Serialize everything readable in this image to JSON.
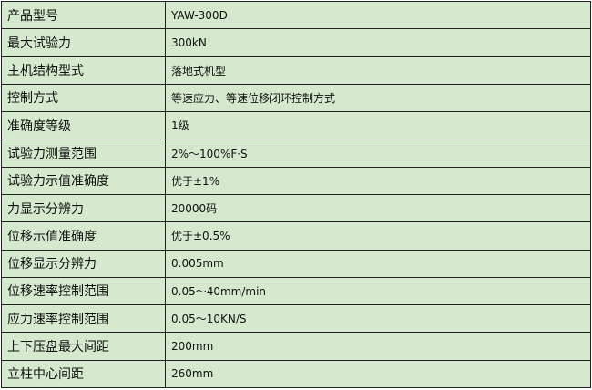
{
  "rows": [
    {
      "label": "产品型号",
      "value": "YAW-300D"
    },
    {
      "label": "最大试验力",
      "value": "300kN"
    },
    {
      "label": "主机结构型式",
      "value": "落地式机型"
    },
    {
      "label": "控制方式",
      "value": "等速应力、等速位移闭环控制方式"
    },
    {
      "label": "准确度等级",
      "value": "1级"
    },
    {
      "label": "试验力测量范围",
      "value": "2%～100%F·S"
    },
    {
      "label": "试验力示值准确度",
      "value": "优于±1%"
    },
    {
      "label": "力显示分辨力",
      "value": "20000码"
    },
    {
      "label": "位移示值准确度",
      "value": "优于±0.5%"
    },
    {
      "label": "位移显示分辨力",
      "value": "0.005mm"
    },
    {
      "label": "位移速率控制范围",
      "value": "0.05～40mm/min"
    },
    {
      "label": "应力速率控制范围",
      "value": "0.05～10KN/S"
    },
    {
      "label": "上下压盘最大间距",
      "value": "200mm"
    },
    {
      "label": "立柱中心间距",
      "value": "260mm"
    }
  ]
}
